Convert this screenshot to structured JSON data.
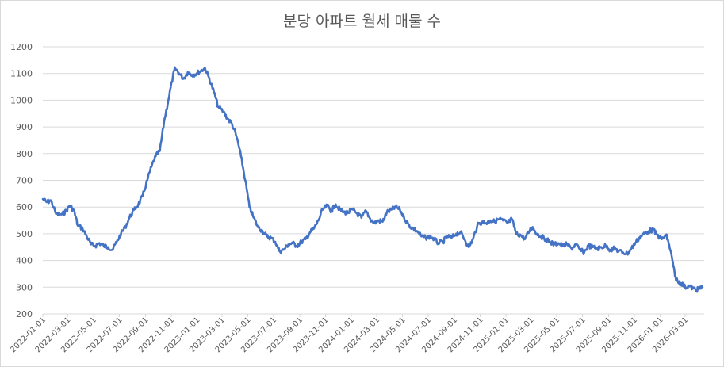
{
  "chart_data": {
    "type": "line",
    "title": "분당 아파트 월세 매물 수",
    "xlabel": "",
    "ylabel": "",
    "ylim": [
      200,
      1200
    ],
    "y_ticks": [
      200,
      300,
      400,
      500,
      600,
      700,
      800,
      900,
      1000,
      1100,
      1200
    ],
    "x_range": [
      "2022-01-01",
      "2026-04-15"
    ],
    "x_ticks": [
      "2022-01-01",
      "2022-03-01",
      "2022-05-01",
      "2022-07-01",
      "2022-09-01",
      "2022-11-01",
      "2023-01-01",
      "2023-03-01",
      "2023-05-01",
      "2023-07-01",
      "2023-09-01",
      "2023-11-01",
      "2024-01-01",
      "2024-03-01",
      "2024-05-01",
      "2024-07-01",
      "2024-09-01",
      "2024-11-01",
      "2025-01-01",
      "2025-03-01",
      "2025-05-01",
      "2025-07-01",
      "2025-09-01",
      "2025-11-01",
      "2026-01-01",
      "2026-03-01"
    ],
    "grid": true,
    "legend": "none",
    "series": [
      {
        "color": "#4472c4",
        "points": [
          [
            "2022-01-01",
            630
          ],
          [
            "2022-01-10",
            618
          ],
          [
            "2022-01-20",
            625
          ],
          [
            "2022-02-01",
            575
          ],
          [
            "2022-02-15",
            572
          ],
          [
            "2022-02-25",
            585
          ],
          [
            "2022-03-05",
            605
          ],
          [
            "2022-03-15",
            590
          ],
          [
            "2022-03-25",
            530
          ],
          [
            "2022-04-05",
            520
          ],
          [
            "2022-04-15",
            490
          ],
          [
            "2022-04-25",
            460
          ],
          [
            "2022-05-05",
            455
          ],
          [
            "2022-05-15",
            465
          ],
          [
            "2022-05-25",
            455
          ],
          [
            "2022-06-05",
            450
          ],
          [
            "2022-06-15",
            440
          ],
          [
            "2022-06-25",
            470
          ],
          [
            "2022-07-05",
            500
          ],
          [
            "2022-07-15",
            525
          ],
          [
            "2022-07-25",
            560
          ],
          [
            "2022-08-05",
            590
          ],
          [
            "2022-08-15",
            610
          ],
          [
            "2022-08-25",
            640
          ],
          [
            "2022-09-05",
            700
          ],
          [
            "2022-09-15",
            750
          ],
          [
            "2022-09-25",
            790
          ],
          [
            "2022-10-05",
            810
          ],
          [
            "2022-10-15",
            920
          ],
          [
            "2022-10-25",
            1000
          ],
          [
            "2022-11-05",
            1090
          ],
          [
            "2022-11-10",
            1120
          ],
          [
            "2022-11-20",
            1100
          ],
          [
            "2022-11-30",
            1080
          ],
          [
            "2022-12-10",
            1105
          ],
          [
            "2022-12-20",
            1095
          ],
          [
            "2022-12-31",
            1100
          ],
          [
            "2023-01-10",
            1110
          ],
          [
            "2023-01-20",
            1120
          ],
          [
            "2023-01-30",
            1080
          ],
          [
            "2023-02-10",
            1030
          ],
          [
            "2023-02-20",
            975
          ],
          [
            "2023-03-05",
            955
          ],
          [
            "2023-03-15",
            930
          ],
          [
            "2023-03-25",
            910
          ],
          [
            "2023-04-05",
            860
          ],
          [
            "2023-04-15",
            790
          ],
          [
            "2023-04-25",
            700
          ],
          [
            "2023-05-05",
            600
          ],
          [
            "2023-05-15",
            560
          ],
          [
            "2023-05-25",
            525
          ],
          [
            "2023-06-05",
            510
          ],
          [
            "2023-06-15",
            490
          ],
          [
            "2023-06-25",
            485
          ],
          [
            "2023-07-05",
            470
          ],
          [
            "2023-07-15",
            435
          ],
          [
            "2023-07-25",
            440
          ],
          [
            "2023-08-05",
            460
          ],
          [
            "2023-08-15",
            465
          ],
          [
            "2023-08-25",
            455
          ],
          [
            "2023-09-05",
            470
          ],
          [
            "2023-09-15",
            480
          ],
          [
            "2023-09-25",
            505
          ],
          [
            "2023-10-05",
            520
          ],
          [
            "2023-10-15",
            550
          ],
          [
            "2023-10-25",
            590
          ],
          [
            "2023-11-05",
            605
          ],
          [
            "2023-11-15",
            585
          ],
          [
            "2023-11-25",
            610
          ],
          [
            "2023-12-05",
            590
          ],
          [
            "2023-12-15",
            580
          ],
          [
            "2023-12-25",
            580
          ],
          [
            "2024-01-05",
            590
          ],
          [
            "2024-01-15",
            575
          ],
          [
            "2024-01-25",
            560
          ],
          [
            "2024-02-05",
            585
          ],
          [
            "2024-02-15",
            555
          ],
          [
            "2024-02-25",
            540
          ],
          [
            "2024-03-05",
            550
          ],
          [
            "2024-03-15",
            545
          ],
          [
            "2024-03-25",
            580
          ],
          [
            "2024-04-05",
            590
          ],
          [
            "2024-04-15",
            600
          ],
          [
            "2024-04-25",
            590
          ],
          [
            "2024-05-05",
            560
          ],
          [
            "2024-05-15",
            535
          ],
          [
            "2024-05-25",
            520
          ],
          [
            "2024-06-05",
            510
          ],
          [
            "2024-06-15",
            490
          ],
          [
            "2024-06-25",
            485
          ],
          [
            "2024-07-05",
            490
          ],
          [
            "2024-07-15",
            480
          ],
          [
            "2024-07-25",
            465
          ],
          [
            "2024-08-05",
            470
          ],
          [
            "2024-08-15",
            490
          ],
          [
            "2024-08-25",
            485
          ],
          [
            "2024-09-05",
            500
          ],
          [
            "2024-09-15",
            505
          ],
          [
            "2024-09-25",
            480
          ],
          [
            "2024-10-05",
            450
          ],
          [
            "2024-10-15",
            480
          ],
          [
            "2024-10-25",
            530
          ],
          [
            "2024-11-05",
            545
          ],
          [
            "2024-11-15",
            540
          ],
          [
            "2024-11-25",
            550
          ],
          [
            "2024-12-05",
            545
          ],
          [
            "2024-12-15",
            555
          ],
          [
            "2024-12-25",
            550
          ],
          [
            "2025-01-05",
            540
          ],
          [
            "2025-01-15",
            555
          ],
          [
            "2025-01-25",
            500
          ],
          [
            "2025-02-05",
            495
          ],
          [
            "2025-02-15",
            480
          ],
          [
            "2025-02-25",
            510
          ],
          [
            "2025-03-05",
            525
          ],
          [
            "2025-03-15",
            500
          ],
          [
            "2025-03-25",
            490
          ],
          [
            "2025-04-05",
            480
          ],
          [
            "2025-04-15",
            470
          ],
          [
            "2025-04-25",
            460
          ],
          [
            "2025-05-05",
            465
          ],
          [
            "2025-05-15",
            455
          ],
          [
            "2025-05-25",
            460
          ],
          [
            "2025-06-05",
            445
          ],
          [
            "2025-06-15",
            460
          ],
          [
            "2025-06-25",
            440
          ],
          [
            "2025-07-05",
            430
          ],
          [
            "2025-07-15",
            455
          ],
          [
            "2025-07-25",
            450
          ],
          [
            "2025-08-05",
            445
          ],
          [
            "2025-08-15",
            450
          ],
          [
            "2025-08-25",
            455
          ],
          [
            "2025-09-05",
            440
          ],
          [
            "2025-09-15",
            445
          ],
          [
            "2025-09-25",
            435
          ],
          [
            "2025-10-05",
            430
          ],
          [
            "2025-10-15",
            425
          ],
          [
            "2025-10-25",
            445
          ],
          [
            "2025-11-05",
            470
          ],
          [
            "2025-11-15",
            490
          ],
          [
            "2025-11-25",
            500
          ],
          [
            "2025-12-05",
            510
          ],
          [
            "2025-12-15",
            515
          ],
          [
            "2025-12-25",
            495
          ],
          [
            "2026-01-05",
            480
          ],
          [
            "2026-01-15",
            495
          ],
          [
            "2026-01-22",
            460
          ],
          [
            "2026-01-30",
            400
          ],
          [
            "2026-02-05",
            340
          ],
          [
            "2026-02-12",
            320
          ],
          [
            "2026-02-20",
            315
          ],
          [
            "2026-03-01",
            300
          ],
          [
            "2026-03-10",
            305
          ],
          [
            "2026-03-20",
            295
          ],
          [
            "2026-03-28",
            290
          ],
          [
            "2026-04-05",
            295
          ],
          [
            "2026-04-10",
            300
          ]
        ]
      }
    ]
  }
}
